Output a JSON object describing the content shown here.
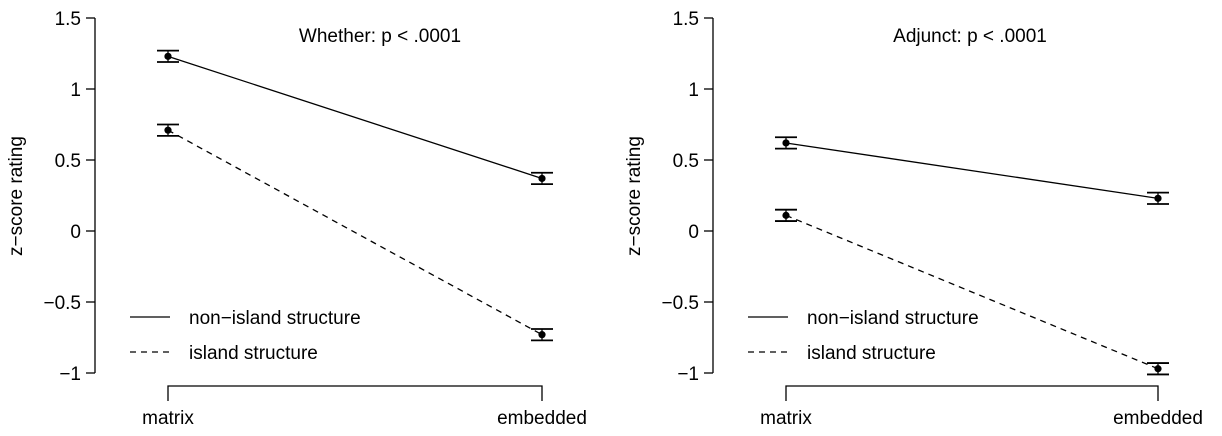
{
  "chart_data": [
    {
      "type": "line",
      "title": "Whether: p < .0001",
      "xlabel": "",
      "ylabel": "z−score rating",
      "categories": [
        "matrix",
        "embedded"
      ],
      "ylim": [
        -1,
        1.5
      ],
      "yticks": [
        "−1",
        "−0.5",
        "0",
        "0.5",
        "1",
        "1.5"
      ],
      "series": [
        {
          "name": "non−island structure",
          "linestyle": "solid",
          "values": [
            1.23,
            0.37
          ],
          "errors": [
            0.04,
            0.04
          ]
        },
        {
          "name": "island structure",
          "linestyle": "dashed",
          "values": [
            0.71,
            -0.73
          ],
          "errors": [
            0.04,
            0.04
          ]
        }
      ],
      "legend": "bottom-left",
      "grid": false
    },
    {
      "type": "line",
      "title": "Adjunct: p < .0001",
      "xlabel": "",
      "ylabel": "z−score rating",
      "categories": [
        "matrix",
        "embedded"
      ],
      "ylim": [
        -1,
        1.5
      ],
      "yticks": [
        "−1",
        "−0.5",
        "0",
        "0.5",
        "1",
        "1.5"
      ],
      "series": [
        {
          "name": "non−island structure",
          "linestyle": "solid",
          "values": [
            0.62,
            0.23
          ],
          "errors": [
            0.04,
            0.04
          ]
        },
        {
          "name": "island structure",
          "linestyle": "dashed",
          "values": [
            0.11,
            -0.97
          ],
          "errors": [
            0.04,
            0.04
          ]
        }
      ],
      "legend": "bottom-left",
      "grid": false
    }
  ]
}
